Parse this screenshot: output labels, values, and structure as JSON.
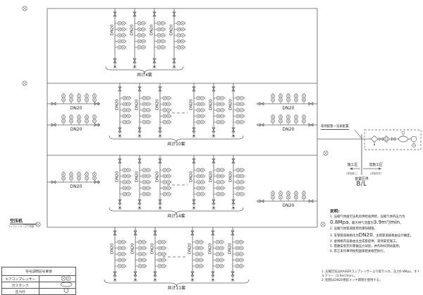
{
  "diagram": {
    "pipe_size_label": "DN20",
    "rows": [
      {
        "brace_label": "共计4套",
        "branches": 4
      },
      {
        "brace_label": "共计10套",
        "branches": 6
      },
      {
        "brace_label": "共计14套",
        "branches": 6
      },
      {
        "brace_label": "共计11套",
        "branches": 6
      }
    ],
    "inlet": {
      "label": "空压机",
      "sub_label": "コンプレッサーより供給"
    },
    "battery_limit": {
      "callout": "现场配管一览表配置",
      "zone_left": "施工区",
      "zone_left_sub": "(现场施工)",
      "zone_right": "非施工区",
      "zone_right_sub": "(成套供货)",
      "boundary": "装置区界",
      "bl": "B/L"
    }
  },
  "notes": {
    "title": "说明:",
    "items": [
      {
        "segments": [
          {
            "t": "1. 压缩气体由空压机房供给站供给，压缩气体的压力为"
          },
          {
            "t": "0.8Mpa",
            "big": true
          },
          {
            "t": "，最大供气流量为"
          },
          {
            "t": "3.9m³/min",
            "big": true
          },
          {
            "t": "。"
          }
        ]
      },
      {
        "segments": [
          {
            "t": "2. 压缩气体管道使用热镀锌钢管。"
          }
        ]
      },
      {
        "segments": [
          {
            "t": "3. 支管管道规格均为"
          },
          {
            "t": "DN20",
            "big": true
          },
          {
            "t": "，主管管道规格由设计确定。"
          }
        ]
      },
      {
        "segments": [
          {
            "t": "4. 虚线框内设备由业主成套提供，现场安装施工。"
          }
        ]
      },
      {
        "segments": [
          {
            "t": "5. 管路安装完毕需做压力试验，并作吹扫测试备用。"
          }
        ]
      },
      {
        "segments": [
          {
            "t": "6. 其它未尽事项按照国家相关规范执行。"
          }
        ]
      }
    ]
  },
  "footnotes": [
    "1. 圧縮空気はKAISERコンプレッサーより取り入れ、圧力0.8Mpa、オイルフリー（3.9m³/min）。",
    "2. 配管はDN20亜鉛メッキ鋼管を使用する。"
  ],
  "title_block": {
    "header": "符号説明記号要領",
    "rows": [
      {
        "label": "エアコンプレッサー",
        "symbol": "compressor-icon"
      },
      {
        "label": "ガスタンク",
        "symbol": "tank-icon"
      },
      {
        "label": "圧力計",
        "symbol": "pressure-gauge-icon"
      }
    ]
  },
  "colors": {
    "line": "#5c5c5c",
    "text": "#1c1c1c"
  }
}
